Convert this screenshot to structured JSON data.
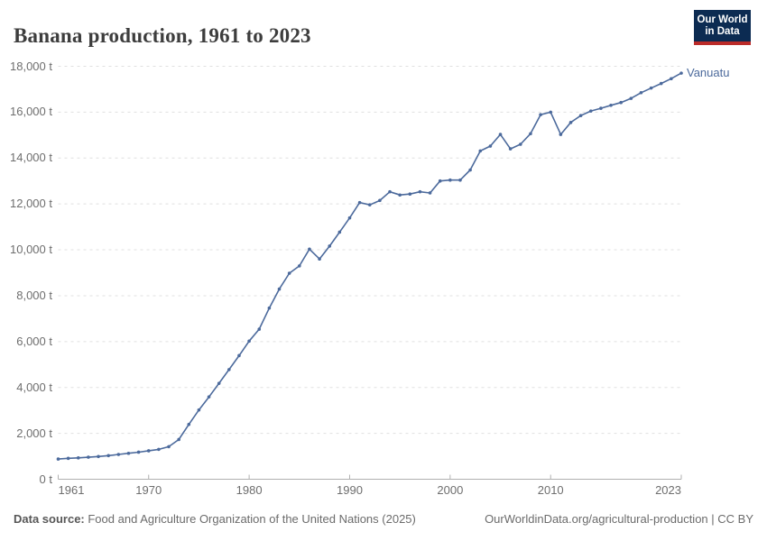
{
  "header": {
    "title": "Banana production, 1961 to 2023"
  },
  "logo": {
    "line1": "Our World",
    "line2": "in Data",
    "bg_color": "#0c2b52",
    "bar_color": "#bb2b29"
  },
  "chart_data": {
    "type": "line",
    "title": "Banana production, 1961 to 2023",
    "xlabel": "",
    "ylabel": "",
    "xlim": [
      1961,
      2023
    ],
    "ylim": [
      0,
      18000
    ],
    "grid": "dashed-horizontal",
    "legend_position": "end-of-line-label",
    "unit": "t",
    "x_ticks": [
      {
        "v": 1961,
        "label": "1961",
        "align": "start"
      },
      {
        "v": 1970,
        "label": "1970",
        "align": "center"
      },
      {
        "v": 1980,
        "label": "1980",
        "align": "center"
      },
      {
        "v": 1990,
        "label": "1990",
        "align": "center"
      },
      {
        "v": 2000,
        "label": "2000",
        "align": "center"
      },
      {
        "v": 2010,
        "label": "2010",
        "align": "center"
      },
      {
        "v": 2023,
        "label": "2023",
        "align": "end"
      }
    ],
    "y_ticks": [
      {
        "v": 0,
        "label": "0 t"
      },
      {
        "v": 2000,
        "label": "2,000 t"
      },
      {
        "v": 4000,
        "label": "4,000 t"
      },
      {
        "v": 6000,
        "label": "6,000 t"
      },
      {
        "v": 8000,
        "label": "8,000 t"
      },
      {
        "v": 10000,
        "label": "10,000 t"
      },
      {
        "v": 12000,
        "label": "12,000 t"
      },
      {
        "v": 14000,
        "label": "14,000 t"
      },
      {
        "v": 16000,
        "label": "16,000 t"
      },
      {
        "v": 18000,
        "label": "18,000 t"
      }
    ],
    "series": [
      {
        "name": "Vanuatu",
        "color": "#4C6A9C",
        "x": [
          1961,
          1962,
          1963,
          1964,
          1965,
          1966,
          1967,
          1968,
          1969,
          1970,
          1971,
          1972,
          1973,
          1974,
          1975,
          1976,
          1977,
          1978,
          1979,
          1980,
          1981,
          1982,
          1983,
          1984,
          1985,
          1986,
          1987,
          1988,
          1989,
          1990,
          1991,
          1992,
          1993,
          1994,
          1995,
          1996,
          1997,
          1998,
          1999,
          2000,
          2001,
          2002,
          2003,
          2004,
          2005,
          2006,
          2007,
          2008,
          2009,
          2010,
          2011,
          2012,
          2013,
          2014,
          2015,
          2016,
          2017,
          2018,
          2019,
          2020,
          2021,
          2022,
          2023
        ],
        "values": [
          880,
          910,
          930,
          960,
          990,
          1030,
          1080,
          1130,
          1180,
          1240,
          1300,
          1420,
          1730,
          2390,
          3020,
          3590,
          4180,
          4780,
          5390,
          6020,
          6540,
          7460,
          8290,
          8980,
          9300,
          10030,
          9600,
          10160,
          10770,
          11390,
          12060,
          11960,
          12150,
          12530,
          12390,
          12430,
          12530,
          12480,
          13000,
          13040,
          13040,
          13480,
          14310,
          14520,
          15030,
          14400,
          14600,
          15060,
          15890,
          16000,
          15030,
          15550,
          15850,
          16050,
          16170,
          16300,
          16420,
          16600,
          16850,
          17050,
          17250,
          17460,
          17700
        ]
      }
    ],
    "colors": {
      "gridline": "#e0e0e0",
      "axis": "#b0b0b0",
      "tick_text": "#6e6e6e"
    }
  },
  "footer": {
    "source_label": "Data source:",
    "source_text": " Food and Agriculture Organization of the United Nations (2025)",
    "attribution": "OurWorldinData.org/agricultural-production | CC BY"
  }
}
